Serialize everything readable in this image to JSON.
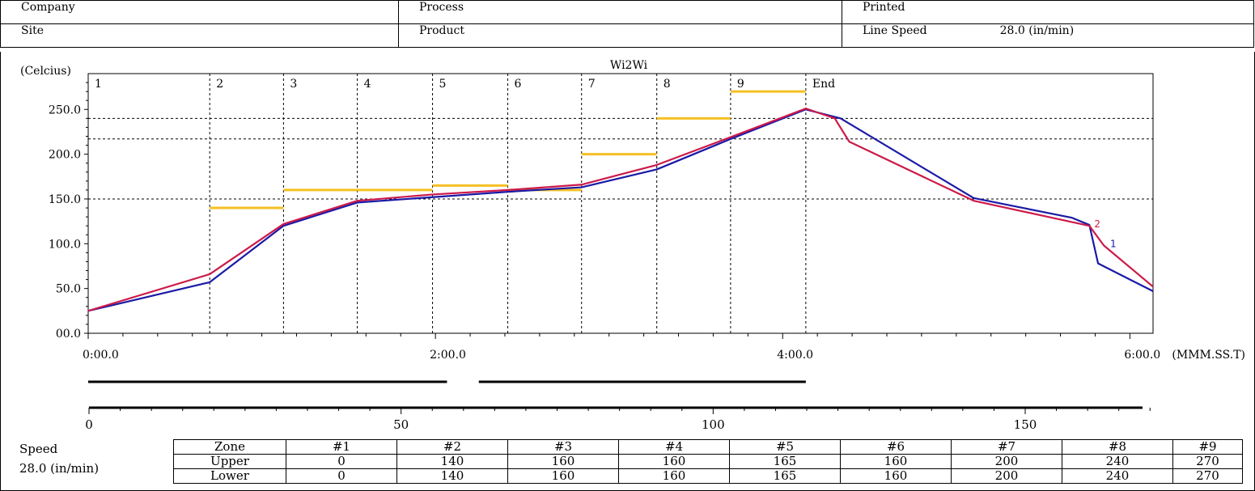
{
  "header": {
    "company_label": "Company",
    "process_label": "Process",
    "printed_label": "Printed",
    "site_label": "Site",
    "product_label": "Product",
    "line_speed_label": "Line Speed",
    "line_speed_value": "28.0 (in/min)"
  },
  "chart_data": {
    "type": "line",
    "title": "Wi2Wi",
    "ylabel": "(Celcius)",
    "xlabel": "(MMM.SS.T)",
    "ylim": [
      0,
      290
    ],
    "xlim_seconds": [
      0,
      368
    ],
    "y_ticks": [
      "00.0",
      "50.0",
      "100.0",
      "150.0",
      "200.0",
      "250.0"
    ],
    "y_tick_values": [
      0,
      50,
      100,
      150,
      200,
      250
    ],
    "x_ticks": [
      "0:00.0",
      "2:00.0",
      "4:00.0",
      "6:00.0"
    ],
    "x_tick_values": [
      0,
      120,
      240,
      360
    ],
    "zone_labels": [
      "1",
      "2",
      "3",
      "4",
      "5",
      "6",
      "7",
      "8",
      "9",
      "End"
    ],
    "zone_boundaries_seconds": [
      0,
      42,
      67.5,
      93,
      119,
      145,
      170.5,
      196.5,
      222,
      248
    ],
    "setpoints": [
      {
        "from": 42,
        "to": 67.5,
        "value": 140
      },
      {
        "from": 67.5,
        "to": 119,
        "value": 160
      },
      {
        "from": 119,
        "to": 145,
        "value": 165
      },
      {
        "from": 145,
        "to": 170.5,
        "value": 160
      },
      {
        "from": 170.5,
        "to": 196.5,
        "value": 200
      },
      {
        "from": 196.5,
        "to": 222,
        "value": 240
      },
      {
        "from": 222,
        "to": 248,
        "value": 270
      }
    ],
    "h_lines": [
      150,
      217,
      240
    ],
    "series": [
      {
        "name": "1",
        "color": "#1a1aa6",
        "x": [
          0,
          42,
          67.5,
          93,
          119,
          145,
          170.5,
          196.5,
          222,
          248,
          260,
          306,
          340,
          346,
          349,
          368
        ],
        "y": [
          25,
          57,
          120,
          146,
          152,
          158,
          163,
          183,
          217,
          250,
          240,
          151,
          129,
          121,
          78,
          47
        ]
      },
      {
        "name": "2",
        "color": "#cc1a4a",
        "x": [
          0,
          42,
          67.5,
          93,
          119,
          145,
          170.5,
          196.5,
          222,
          248,
          258,
          263,
          306,
          346,
          351,
          368
        ],
        "y": [
          25,
          66,
          122,
          148,
          155,
          160,
          166,
          188,
          219,
          251,
          240,
          214,
          148,
          120,
          98,
          52
        ]
      }
    ],
    "distance_axis": {
      "ticks": [
        "0",
        "50",
        "100",
        "150"
      ],
      "tick_values": [
        0,
        50,
        100,
        150
      ],
      "max": 170
    },
    "conveyor_bars_seconds": [
      [
        0,
        124
      ],
      [
        135,
        248
      ]
    ]
  },
  "zone_table": {
    "speed_label": "Speed",
    "speed_value": "28.0 (in/min)",
    "headers": [
      "Zone",
      "#1",
      "#2",
      "#3",
      "#4",
      "#5",
      "#6",
      "#7",
      "#8",
      "#9"
    ],
    "upper": [
      "Upper",
      "0",
      "140",
      "160",
      "160",
      "165",
      "160",
      "200",
      "240",
      "270"
    ],
    "lower": [
      "Lower",
      "0",
      "140",
      "160",
      "160",
      "165",
      "160",
      "200",
      "240",
      "270"
    ]
  }
}
